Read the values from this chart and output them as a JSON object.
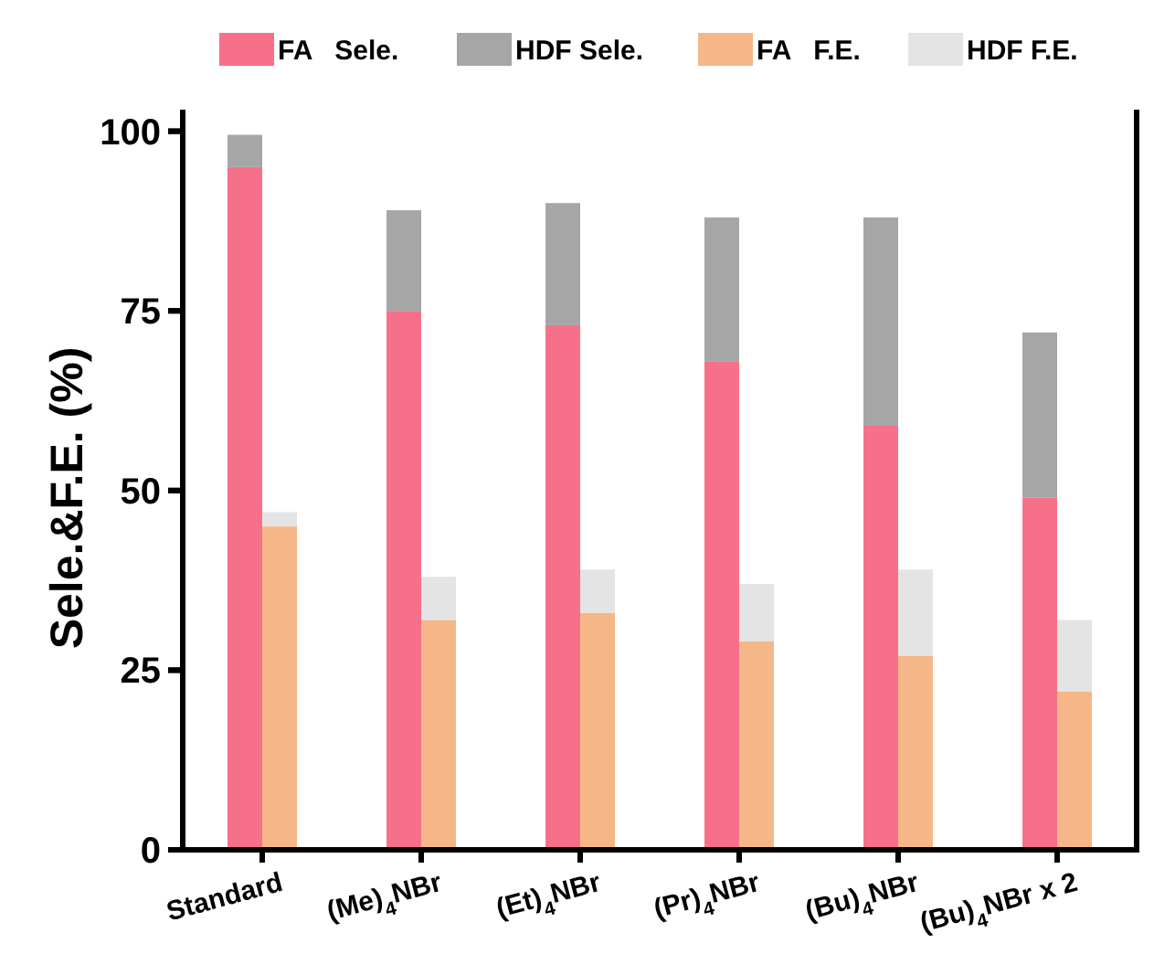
{
  "chart_data": [
    {
      "type": "bar",
      "stacked": true,
      "ylabel": "Sele.&F.E. (%)",
      "legend": "top",
      "categories": [
        "Standard",
        "(Me)$_{4}$NBr",
        "(Et)$_{4}$NBr",
        "(Pr)$_{4}$NBr",
        "(Bu)$_{4}$NBr",
        "(Bu)$_{4}$NBr x 2"
      ],
      "series": [
        {
          "name": "FA   Sele.",
          "color": "#f7708a",
          "values": [
            95,
            75,
            73,
            68,
            59,
            49
          ]
        },
        {
          "name": "HDF Sele.",
          "color": "#a6a6a6",
          "values": [
            4.5,
            14,
            17,
            20,
            29,
            23
          ]
        }
      ],
      "ylim": [
        0,
        103
      ],
      "yticks": [
        0,
        25,
        50,
        75,
        100
      ]
    },
    {
      "type": "bar",
      "stacked": true,
      "legend": "top",
      "tick_labels": false,
      "categories": [
        null,
        null,
        null,
        null,
        null,
        null
      ],
      "series": [
        {
          "name": "FA   F.E.",
          "color": "#f5b788",
          "values": [
            45,
            32,
            33,
            29,
            27,
            22
          ]
        },
        {
          "name": "HDF F.E.",
          "color": "#e4e4e4",
          "values": [
            2,
            6,
            6,
            8,
            12,
            10
          ]
        }
      ],
      "ylim": [
        0,
        103
      ],
      "yticks": [
        0,
        25,
        50,
        75,
        100
      ]
    }
  ]
}
